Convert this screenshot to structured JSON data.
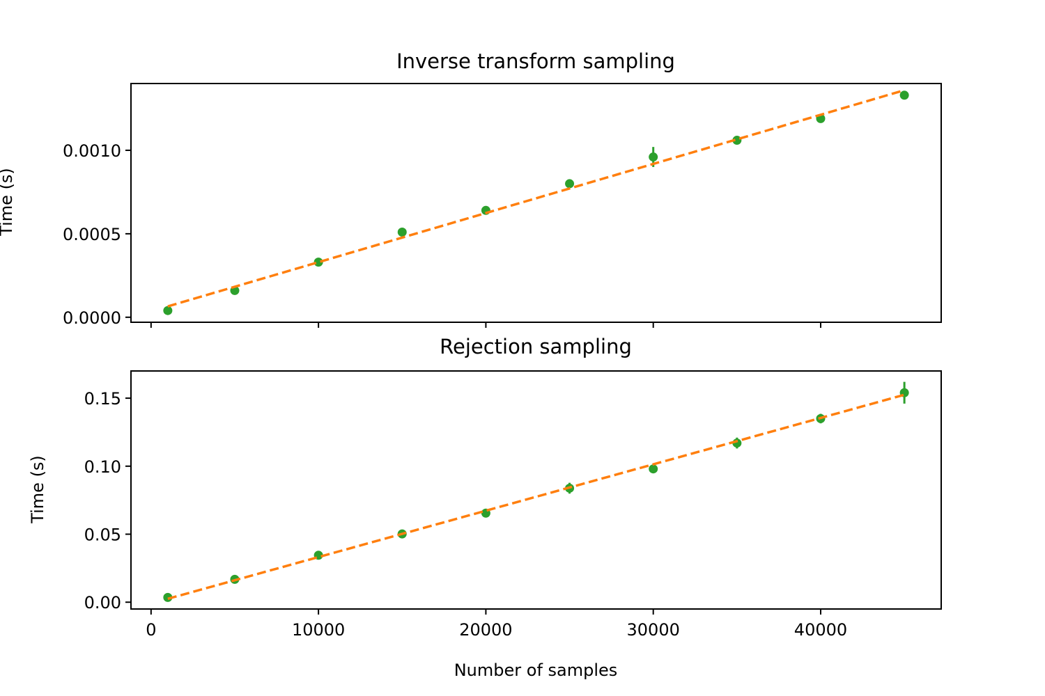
{
  "chart_data": [
    {
      "type": "scatter",
      "title": "Inverse transform sampling",
      "xlabel": "",
      "ylabel": "Time (s)",
      "xlim": [
        -1200,
        47200
      ],
      "ylim": [
        -3e-05,
        0.0014
      ],
      "xticks": [
        0,
        10000,
        20000,
        30000,
        40000
      ],
      "xtick_labels_shown": false,
      "yticks": [
        0.0,
        0.0005,
        0.001
      ],
      "ytick_labels": [
        "0.0000",
        "0.0005",
        "0.0010"
      ],
      "grid": false,
      "series": [
        {
          "kind": "points_with_errorbars",
          "color": "#2ca02c",
          "x": [
            1000,
            5000,
            10000,
            15000,
            20000,
            25000,
            30000,
            35000,
            40000,
            45000
          ],
          "y": [
            4e-05,
            0.00016,
            0.00033,
            0.00051,
            0.00064,
            0.0008,
            0.00096,
            0.00106,
            0.00119,
            0.00133
          ],
          "yerr": [
            8e-06,
            1.2e-05,
            1.5e-05,
            2.5e-05,
            1.5e-05,
            2.5e-05,
            6e-05,
            1.2e-05,
            1.2e-05,
            1.2e-05
          ]
        },
        {
          "kind": "fit_line",
          "color": "#ff7f0e",
          "dashed": true,
          "x": [
            1000,
            45000
          ],
          "y": [
            6.5e-05,
            0.00136
          ]
        }
      ]
    },
    {
      "type": "scatter",
      "title": "Rejection sampling",
      "xlabel": "Number of samples",
      "ylabel": "Time (s)",
      "xlim": [
        -1200,
        47200
      ],
      "ylim": [
        -0.005,
        0.17
      ],
      "xticks": [
        0,
        10000,
        20000,
        30000,
        40000
      ],
      "xtick_labels": [
        "0",
        "10000",
        "20000",
        "30000",
        "40000"
      ],
      "xtick_labels_shown": true,
      "yticks": [
        0.0,
        0.05,
        0.1,
        0.15
      ],
      "ytick_labels": [
        "0.00",
        "0.05",
        "0.10",
        "0.15"
      ],
      "grid": false,
      "series": [
        {
          "kind": "points_with_errorbars",
          "color": "#2ca02c",
          "x": [
            1000,
            5000,
            10000,
            15000,
            20000,
            25000,
            30000,
            35000,
            40000,
            45000
          ],
          "y": [
            0.0035,
            0.0168,
            0.0345,
            0.0502,
            0.0655,
            0.0838,
            0.098,
            0.117,
            0.135,
            0.154
          ],
          "yerr": [
            0.0008,
            0.0012,
            0.0015,
            0.0015,
            0.0015,
            0.004,
            0.0015,
            0.004,
            0.0035,
            0.008
          ]
        },
        {
          "kind": "fit_line",
          "color": "#ff7f0e",
          "dashed": true,
          "x": [
            1000,
            45000
          ],
          "y": [
            0.0025,
            0.1525
          ]
        }
      ]
    }
  ]
}
